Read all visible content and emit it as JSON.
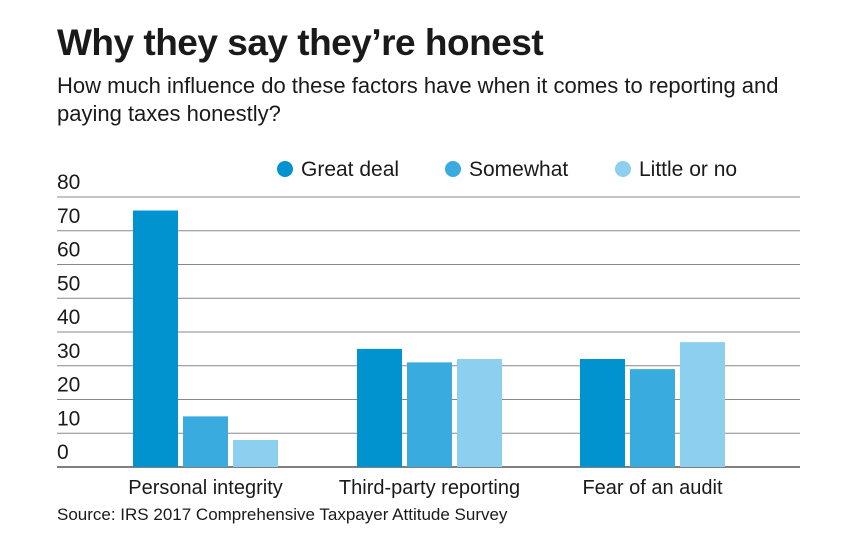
{
  "chart_data": {
    "type": "bar",
    "title": "Why they say they’re honest",
    "subtitle": "How much influence do these factors have when it comes to reporting and paying taxes honestly?",
    "source": "Source: IRS 2017 Comprehensive Taxpayer Attitude Survey",
    "categories": [
      "Personal integrity",
      "Third-party reporting",
      "Fear of an audit"
    ],
    "series": [
      {
        "name": "Great deal",
        "color": "#0093d0",
        "values": [
          76,
          35,
          32
        ]
      },
      {
        "name": "Somewhat",
        "color": "#3aabdf",
        "values": [
          15,
          31,
          29
        ]
      },
      {
        "name": "Little or no",
        "color": "#8dcfee",
        "values": [
          8,
          32,
          37
        ]
      }
    ],
    "ylim": [
      0,
      80
    ],
    "yticks": [
      0,
      10,
      20,
      30,
      40,
      50,
      60,
      70,
      80
    ],
    "grid": true,
    "legend": "top-right"
  }
}
